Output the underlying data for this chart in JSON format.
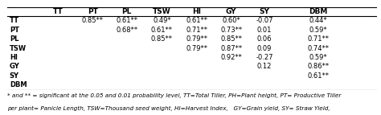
{
  "columns": [
    "",
    "TT",
    "PT",
    "PL",
    "TSW",
    "HI",
    "GY",
    "SY",
    "DBM"
  ],
  "rows": [
    [
      "TT",
      "",
      "0.85**",
      "0.61**",
      "0.49*",
      "0.61**",
      "0.60*",
      "-0.07",
      "0.44*"
    ],
    [
      "PT",
      "",
      "",
      "0.68**",
      "0.61**",
      "0.71**",
      "0.73**",
      "0.01",
      "0.59*"
    ],
    [
      "PL",
      "",
      "",
      "",
      "0.85**",
      "0.79**",
      "0.85**",
      "0.06",
      "0.71**"
    ],
    [
      "TSW",
      "",
      "",
      "",
      "",
      "0.79**",
      "0.87**",
      "0.09",
      "0.74**"
    ],
    [
      "HI",
      "",
      "",
      "",
      "",
      "",
      "0.92**",
      "-0.27",
      "0.59*"
    ],
    [
      "GY",
      "",
      "",
      "",
      "",
      "",
      "",
      "0.12",
      "0.86**"
    ],
    [
      "SY",
      "",
      "",
      "",
      "",
      "",
      "",
      "",
      "0.61**"
    ],
    [
      "DBM",
      "",
      "",
      "",
      "",
      "",
      "",
      "",
      ""
    ]
  ],
  "footnote_line1": "* and ** = significant at the 0.05 and 0.01 probability level, TT=Total Tiller, PH=Plant height, PT= Productive Tiller",
  "footnote_line2": "per plant= Panicle Length, TSW=Thousand seed weight, HI=Harvest Index,   GY=Grain yield, SY= Straw Yield,",
  "header_fontsize": 6.5,
  "cell_fontsize": 6.0,
  "footnote_fontsize": 5.2,
  "fig_width": 4.74,
  "fig_height": 1.43,
  "dpi": 100
}
